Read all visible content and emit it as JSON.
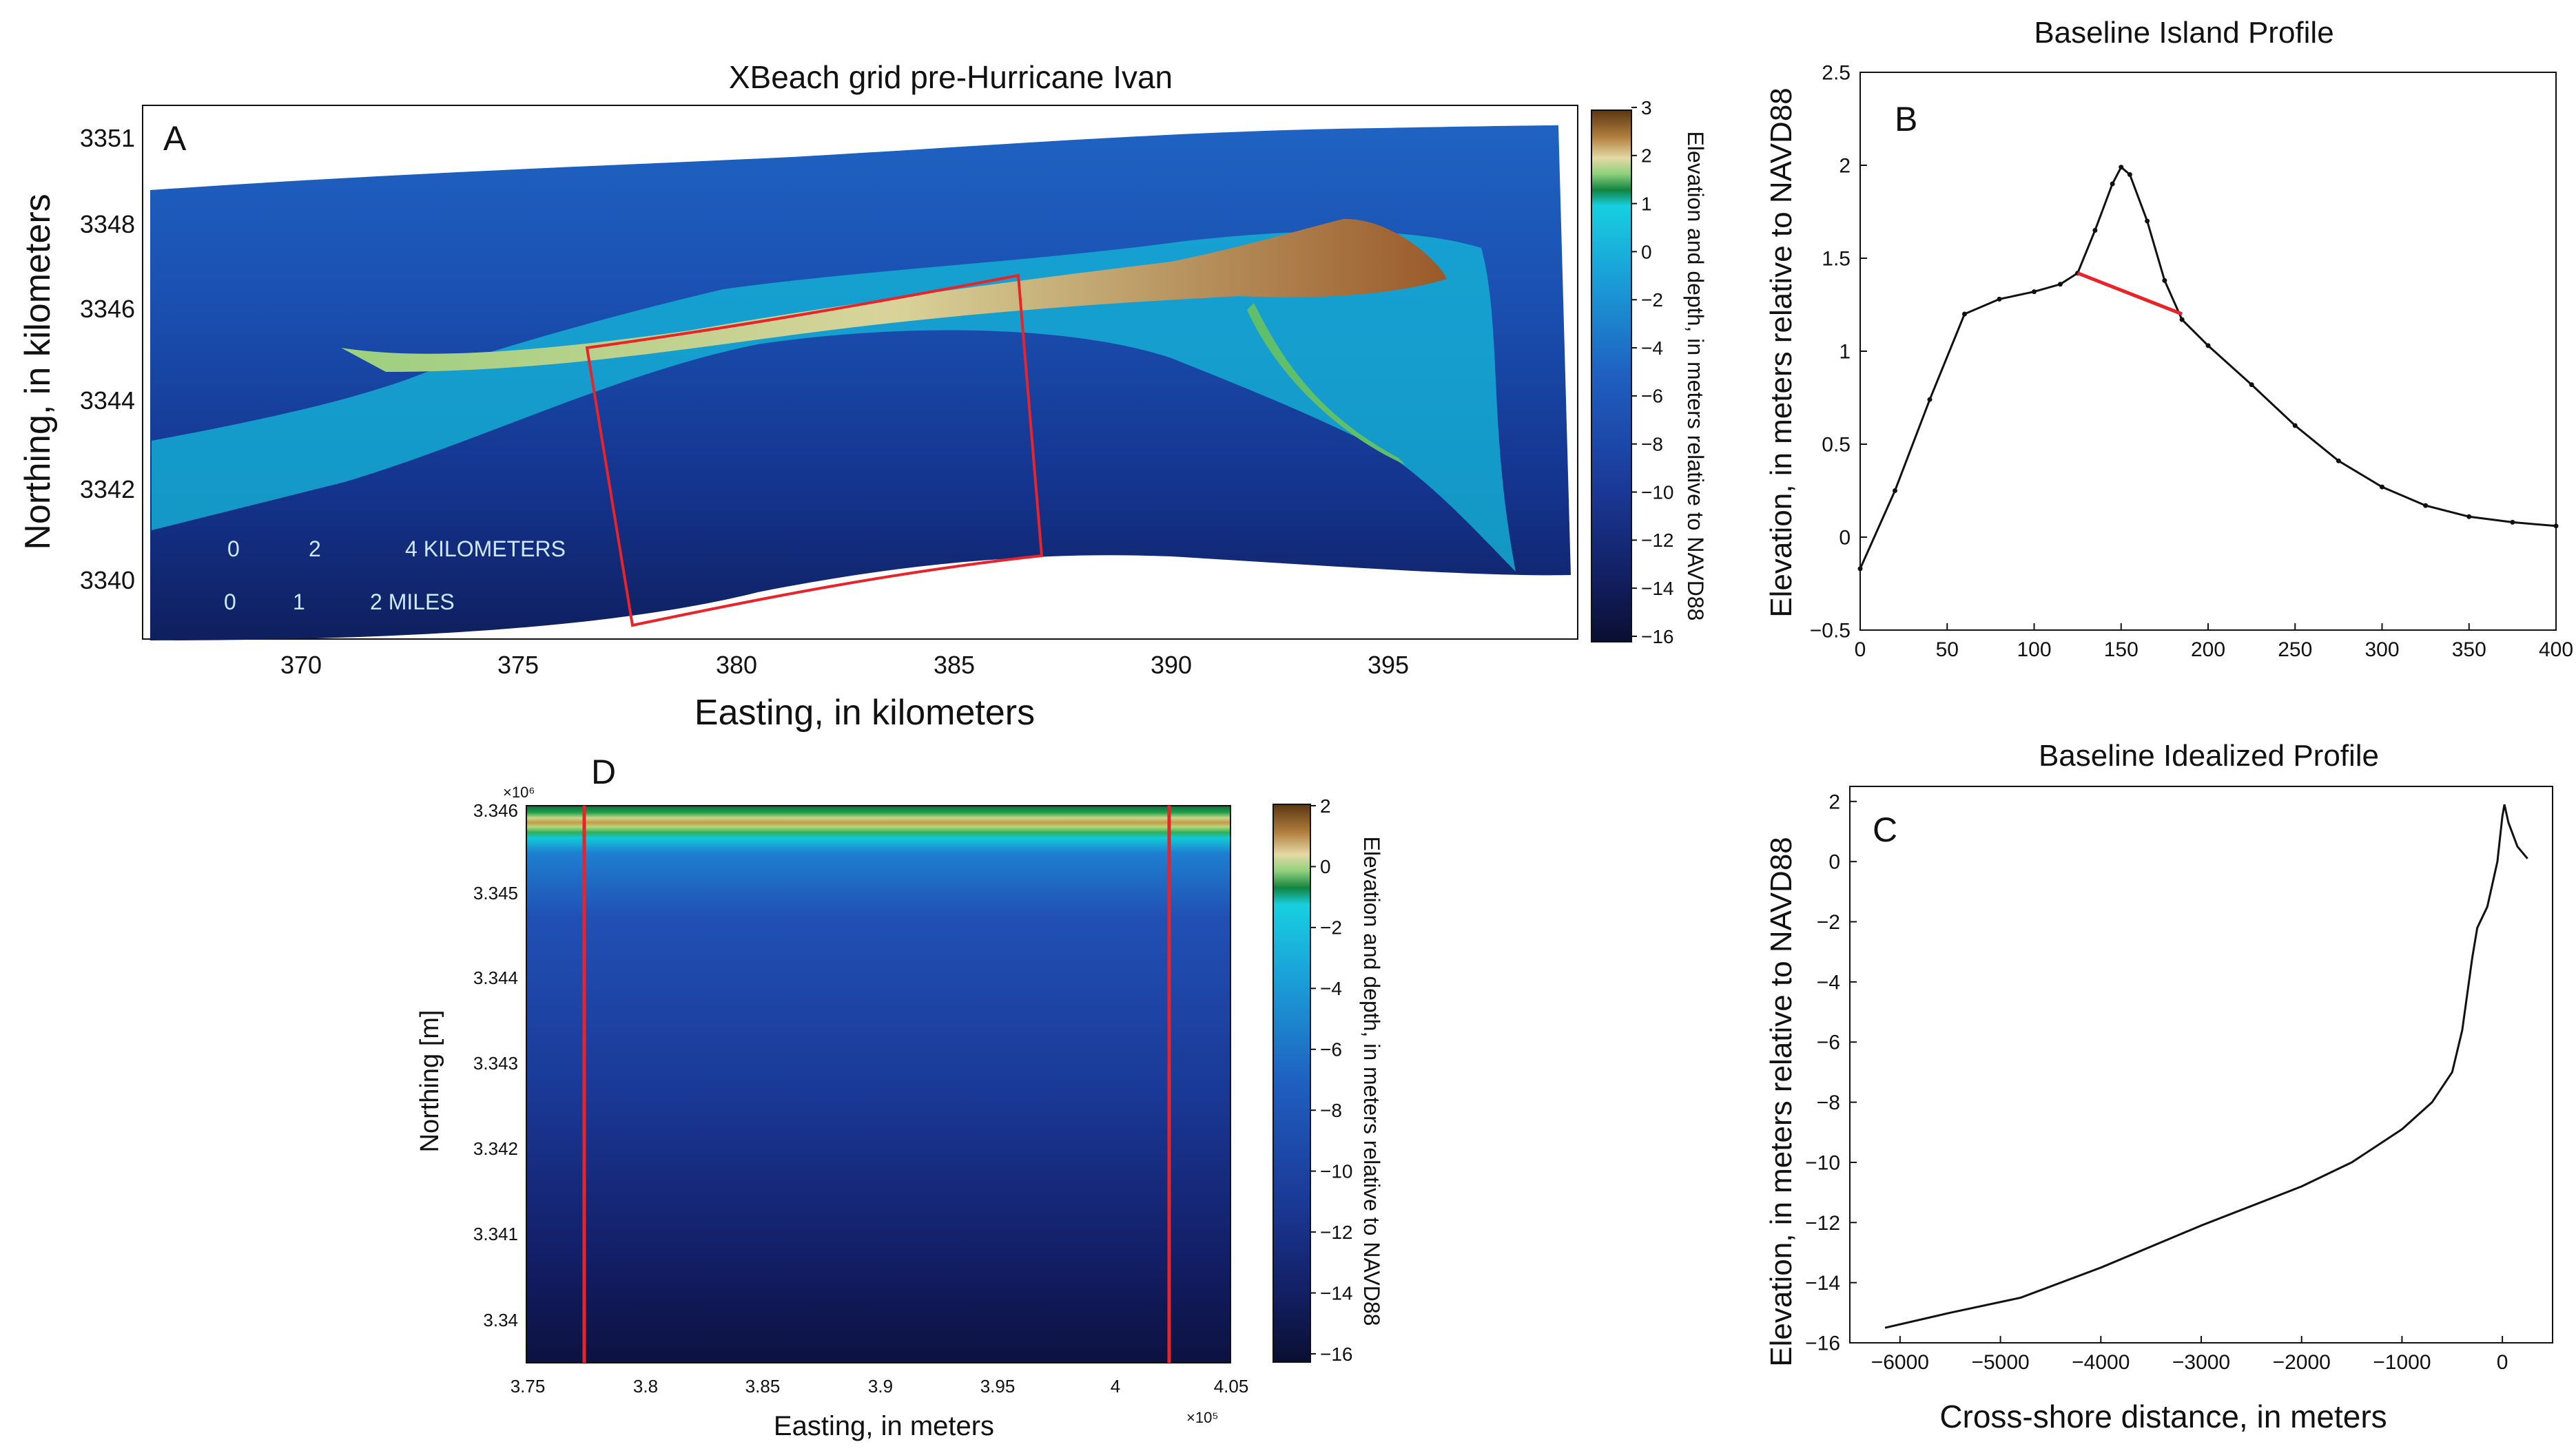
{
  "colors": {
    "red": "#e8232a",
    "line": "#111111",
    "axis": "#111111"
  },
  "panel_a": {
    "title": "XBeach grid pre-Hurricane Ivan",
    "letter": "A",
    "xlabel": "Easting, in kilometers",
    "ylabel": "Northing, in kilometers",
    "x_ticks": [
      "370",
      "375",
      "380",
      "385",
      "390",
      "395"
    ],
    "y_ticks": [
      "3351",
      "3348",
      "3346",
      "3344",
      "3342",
      "3340"
    ],
    "colorbar_label": "Elevation and depth, in meters relative to NAVD88",
    "colorbar_ticks": [
      "3",
      "2",
      "1",
      "0",
      "−2",
      "−4",
      "−6",
      "−8",
      "−10",
      "−12",
      "−14",
      "−16"
    ],
    "scale_km": {
      "zero": "0",
      "mid": "2",
      "end": "4 KILOMETERS"
    },
    "scale_mi": {
      "zero": "0",
      "mid": "1",
      "end": "2 MILES"
    }
  },
  "panel_d": {
    "letter": "D",
    "xlabel": "Easting, in meters",
    "ylabel": "Northing [m]",
    "x_ticks": [
      "3.75",
      "3.8",
      "3.85",
      "3.9",
      "3.95",
      "4",
      "4.05"
    ],
    "x_exponent": "×10⁵",
    "y_ticks": [
      "3.346",
      "3.345",
      "3.344",
      "3.343",
      "3.342",
      "3.341",
      "3.34"
    ],
    "y_exponent": "×10⁶",
    "colorbar_label": "Elevation and depth, in meters relative to NAVD88",
    "colorbar_ticks": [
      "2",
      "0",
      "−2",
      "−4",
      "−6",
      "−8",
      "−10",
      "−12",
      "−14",
      "−16"
    ]
  },
  "chart_data": [
    {
      "type": "line",
      "panel": "B",
      "title": "Baseline Island Profile",
      "xlabel": "",
      "ylabel": "Elevation, in meters relative to NAVD88",
      "xlim": [
        0,
        400
      ],
      "ylim": [
        -0.5,
        2.5
      ],
      "x_ticks": [
        0,
        50,
        100,
        150,
        200,
        250,
        300,
        350,
        400
      ],
      "y_ticks": [
        -0.5,
        0,
        0.5,
        1,
        1.5,
        2,
        2.5
      ],
      "x_tick_labels": [
        "0",
        "50",
        "100",
        "150",
        "200",
        "250",
        "300",
        "350",
        "400"
      ],
      "y_tick_labels": [
        "−0.5",
        "0",
        "0.5",
        "1",
        "1.5",
        "2",
        "2.5"
      ],
      "series": [
        {
          "name": "profile",
          "x": [
            0,
            20,
            40,
            60,
            80,
            100,
            115,
            125,
            135,
            145,
            150,
            155,
            165,
            175,
            185,
            200,
            225,
            250,
            275,
            300,
            325,
            350,
            375,
            400
          ],
          "y": [
            -0.17,
            0.25,
            0.74,
            1.2,
            1.28,
            1.32,
            1.36,
            1.42,
            1.65,
            1.9,
            1.99,
            1.95,
            1.7,
            1.38,
            1.17,
            1.03,
            0.82,
            0.6,
            0.41,
            0.27,
            0.17,
            0.11,
            0.08,
            0.06
          ]
        },
        {
          "name": "breach line",
          "color": "red",
          "x": [
            125,
            185
          ],
          "y": [
            1.42,
            1.2
          ]
        }
      ]
    },
    {
      "type": "line",
      "panel": "C",
      "title": "Baseline Idealized Profile",
      "xlabel": "Cross-shore distance, in meters",
      "ylabel": "Elevation, in meters relative to NAVD88",
      "xlim": [
        -6500,
        500
      ],
      "ylim": [
        -16,
        2.5
      ],
      "x_ticks": [
        -6000,
        -5000,
        -4000,
        -3000,
        -2000,
        -1000,
        0
      ],
      "y_ticks": [
        -16,
        -14,
        -12,
        -10,
        -8,
        -6,
        -4,
        -2,
        0,
        2
      ],
      "x_tick_labels": [
        "−6000",
        "−5000",
        "−4000",
        "−3000",
        "−2000",
        "−1000",
        "0"
      ],
      "y_tick_labels": [
        "−16",
        "−14",
        "−12",
        "−10",
        "−8",
        "−6",
        "−4",
        "−2",
        "0",
        "2"
      ],
      "series": [
        {
          "name": "profile",
          "x": [
            -6150,
            -5500,
            -4800,
            -4000,
            -3000,
            -2000,
            -1500,
            -1000,
            -700,
            -500,
            -400,
            -300,
            -250,
            -150,
            -50,
            0,
            20,
            60,
            150,
            250
          ],
          "y": [
            -15.5,
            -15.0,
            -14.5,
            -13.5,
            -12.1,
            -10.8,
            -10.0,
            -8.9,
            -8.0,
            -7.0,
            -5.6,
            -3.2,
            -2.2,
            -1.5,
            0.0,
            1.5,
            1.9,
            1.3,
            0.5,
            0.1
          ]
        }
      ]
    }
  ]
}
